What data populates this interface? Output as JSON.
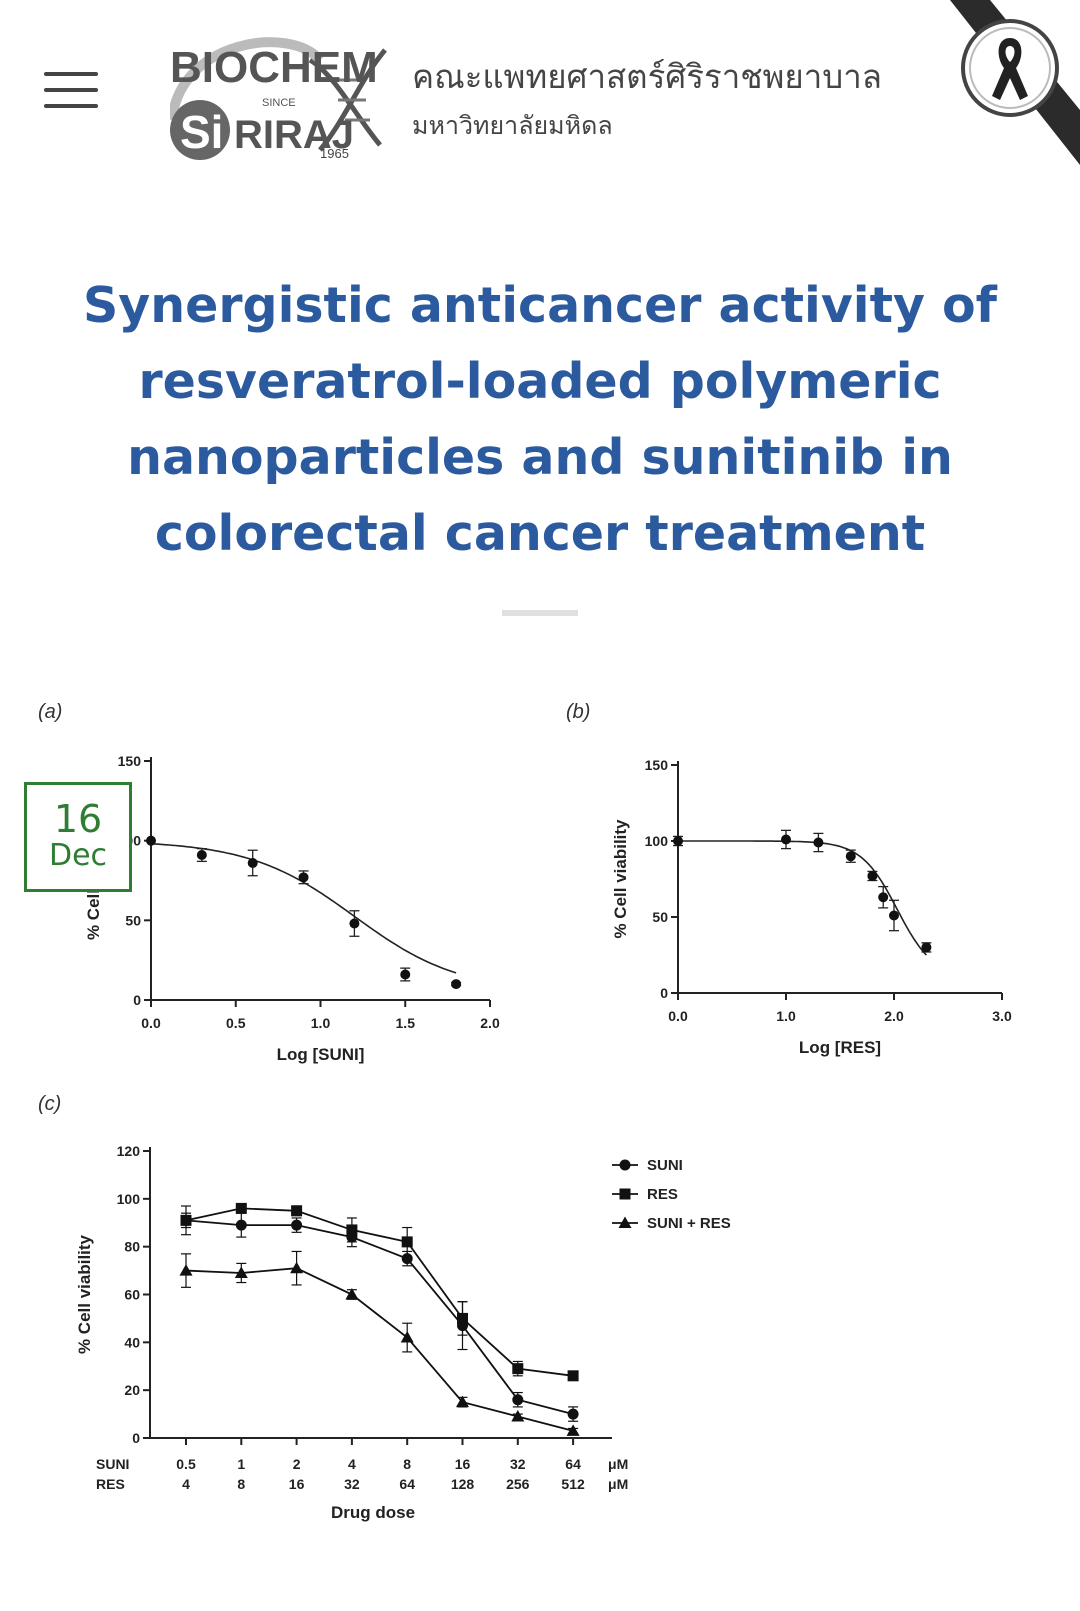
{
  "header": {
    "logo": {
      "top_text": "BIOCHEM",
      "since_text": "SINCE",
      "year": "1965",
      "si_text": "Si",
      "riraj_text": "RIRAJ"
    },
    "faculty_name_th": "คณะแพทยศาสตร์ศิริราชพยาบาล",
    "university_name_th": "มหาวิทยาลัยมหิดล",
    "icons": {
      "menu": "hamburger-menu-icon",
      "ribbon": "mourning-ribbon-icon"
    }
  },
  "article": {
    "title": "Synergistic anticancer activity of resveratrol-loaded polymeric nanoparticles and sunitinib in colorectal cancer treatment"
  },
  "date_badge": {
    "day": "16",
    "month": "Dec"
  },
  "chart_data": [
    {
      "panel": "(a)",
      "type": "scatter",
      "xlabel": "Log [SUNI]",
      "ylabel": "% Cell viability",
      "xlim": [
        0,
        2.0
      ],
      "ylim": [
        0,
        150
      ],
      "xticks": [
        "0.0",
        "0.5",
        "1.0",
        "1.5",
        "2.0"
      ],
      "yticks": [
        "0",
        "50",
        "100",
        "150"
      ],
      "points": [
        {
          "x": 0.0,
          "y": 100,
          "err": 0
        },
        {
          "x": 0.3,
          "y": 91,
          "err": 4
        },
        {
          "x": 0.6,
          "y": 86,
          "err": 8
        },
        {
          "x": 0.9,
          "y": 77,
          "err": 4
        },
        {
          "x": 1.2,
          "y": 48,
          "err": 8
        },
        {
          "x": 1.5,
          "y": 16,
          "err": 4
        },
        {
          "x": 1.8,
          "y": 10,
          "err": 1
        }
      ],
      "curve": "sigmoid-fit"
    },
    {
      "panel": "(b)",
      "type": "scatter",
      "xlabel": "Log [RES]",
      "ylabel": "% Cell viability",
      "xlim": [
        0,
        3.0
      ],
      "ylim": [
        0,
        150
      ],
      "xticks": [
        "0.0",
        "1.0",
        "2.0",
        "3.0"
      ],
      "yticks": [
        "0",
        "50",
        "100",
        "150"
      ],
      "points": [
        {
          "x": 0.0,
          "y": 100,
          "err": 3
        },
        {
          "x": 1.0,
          "y": 101,
          "err": 6
        },
        {
          "x": 1.3,
          "y": 99,
          "err": 6
        },
        {
          "x": 1.6,
          "y": 90,
          "err": 4
        },
        {
          "x": 1.8,
          "y": 77,
          "err": 3
        },
        {
          "x": 1.9,
          "y": 63,
          "err": 7
        },
        {
          "x": 2.0,
          "y": 51,
          "err": 10
        },
        {
          "x": 2.3,
          "y": 30,
          "err": 3
        }
      ],
      "curve": "sigmoid-fit"
    },
    {
      "panel": "(c)",
      "type": "line",
      "xlabel": "Drug dose",
      "ylabel": "% Cell viability",
      "ylim": [
        0,
        120
      ],
      "yticks": [
        "0",
        "20",
        "40",
        "60",
        "80",
        "100",
        "120"
      ],
      "row_labels": {
        "suni": "SUNI",
        "res": "RES",
        "unit": "μM"
      },
      "categories_suni": [
        "0.5",
        "1",
        "2",
        "4",
        "8",
        "16",
        "32",
        "64"
      ],
      "categories_res": [
        "4",
        "8",
        "16",
        "32",
        "64",
        "128",
        "256",
        "512"
      ],
      "legend_position": "top-right",
      "series": [
        {
          "name": "SUNI",
          "marker": "circle",
          "values": [
            91,
            89,
            89,
            84,
            75,
            47,
            16,
            10
          ],
          "errors": [
            3,
            5,
            3,
            4,
            3,
            10,
            3,
            3
          ]
        },
        {
          "name": "RES",
          "marker": "square",
          "values": [
            91,
            96,
            95,
            87,
            82,
            50,
            29,
            26
          ],
          "errors": [
            6,
            1,
            2,
            5,
            6,
            7,
            3,
            1
          ]
        },
        {
          "name": "SUNI + RES",
          "marker": "triangle",
          "values": [
            70,
            69,
            71,
            60,
            42,
            15,
            9,
            3
          ],
          "errors": [
            7,
            4,
            7,
            2,
            6,
            2,
            1,
            1
          ]
        }
      ]
    }
  ]
}
